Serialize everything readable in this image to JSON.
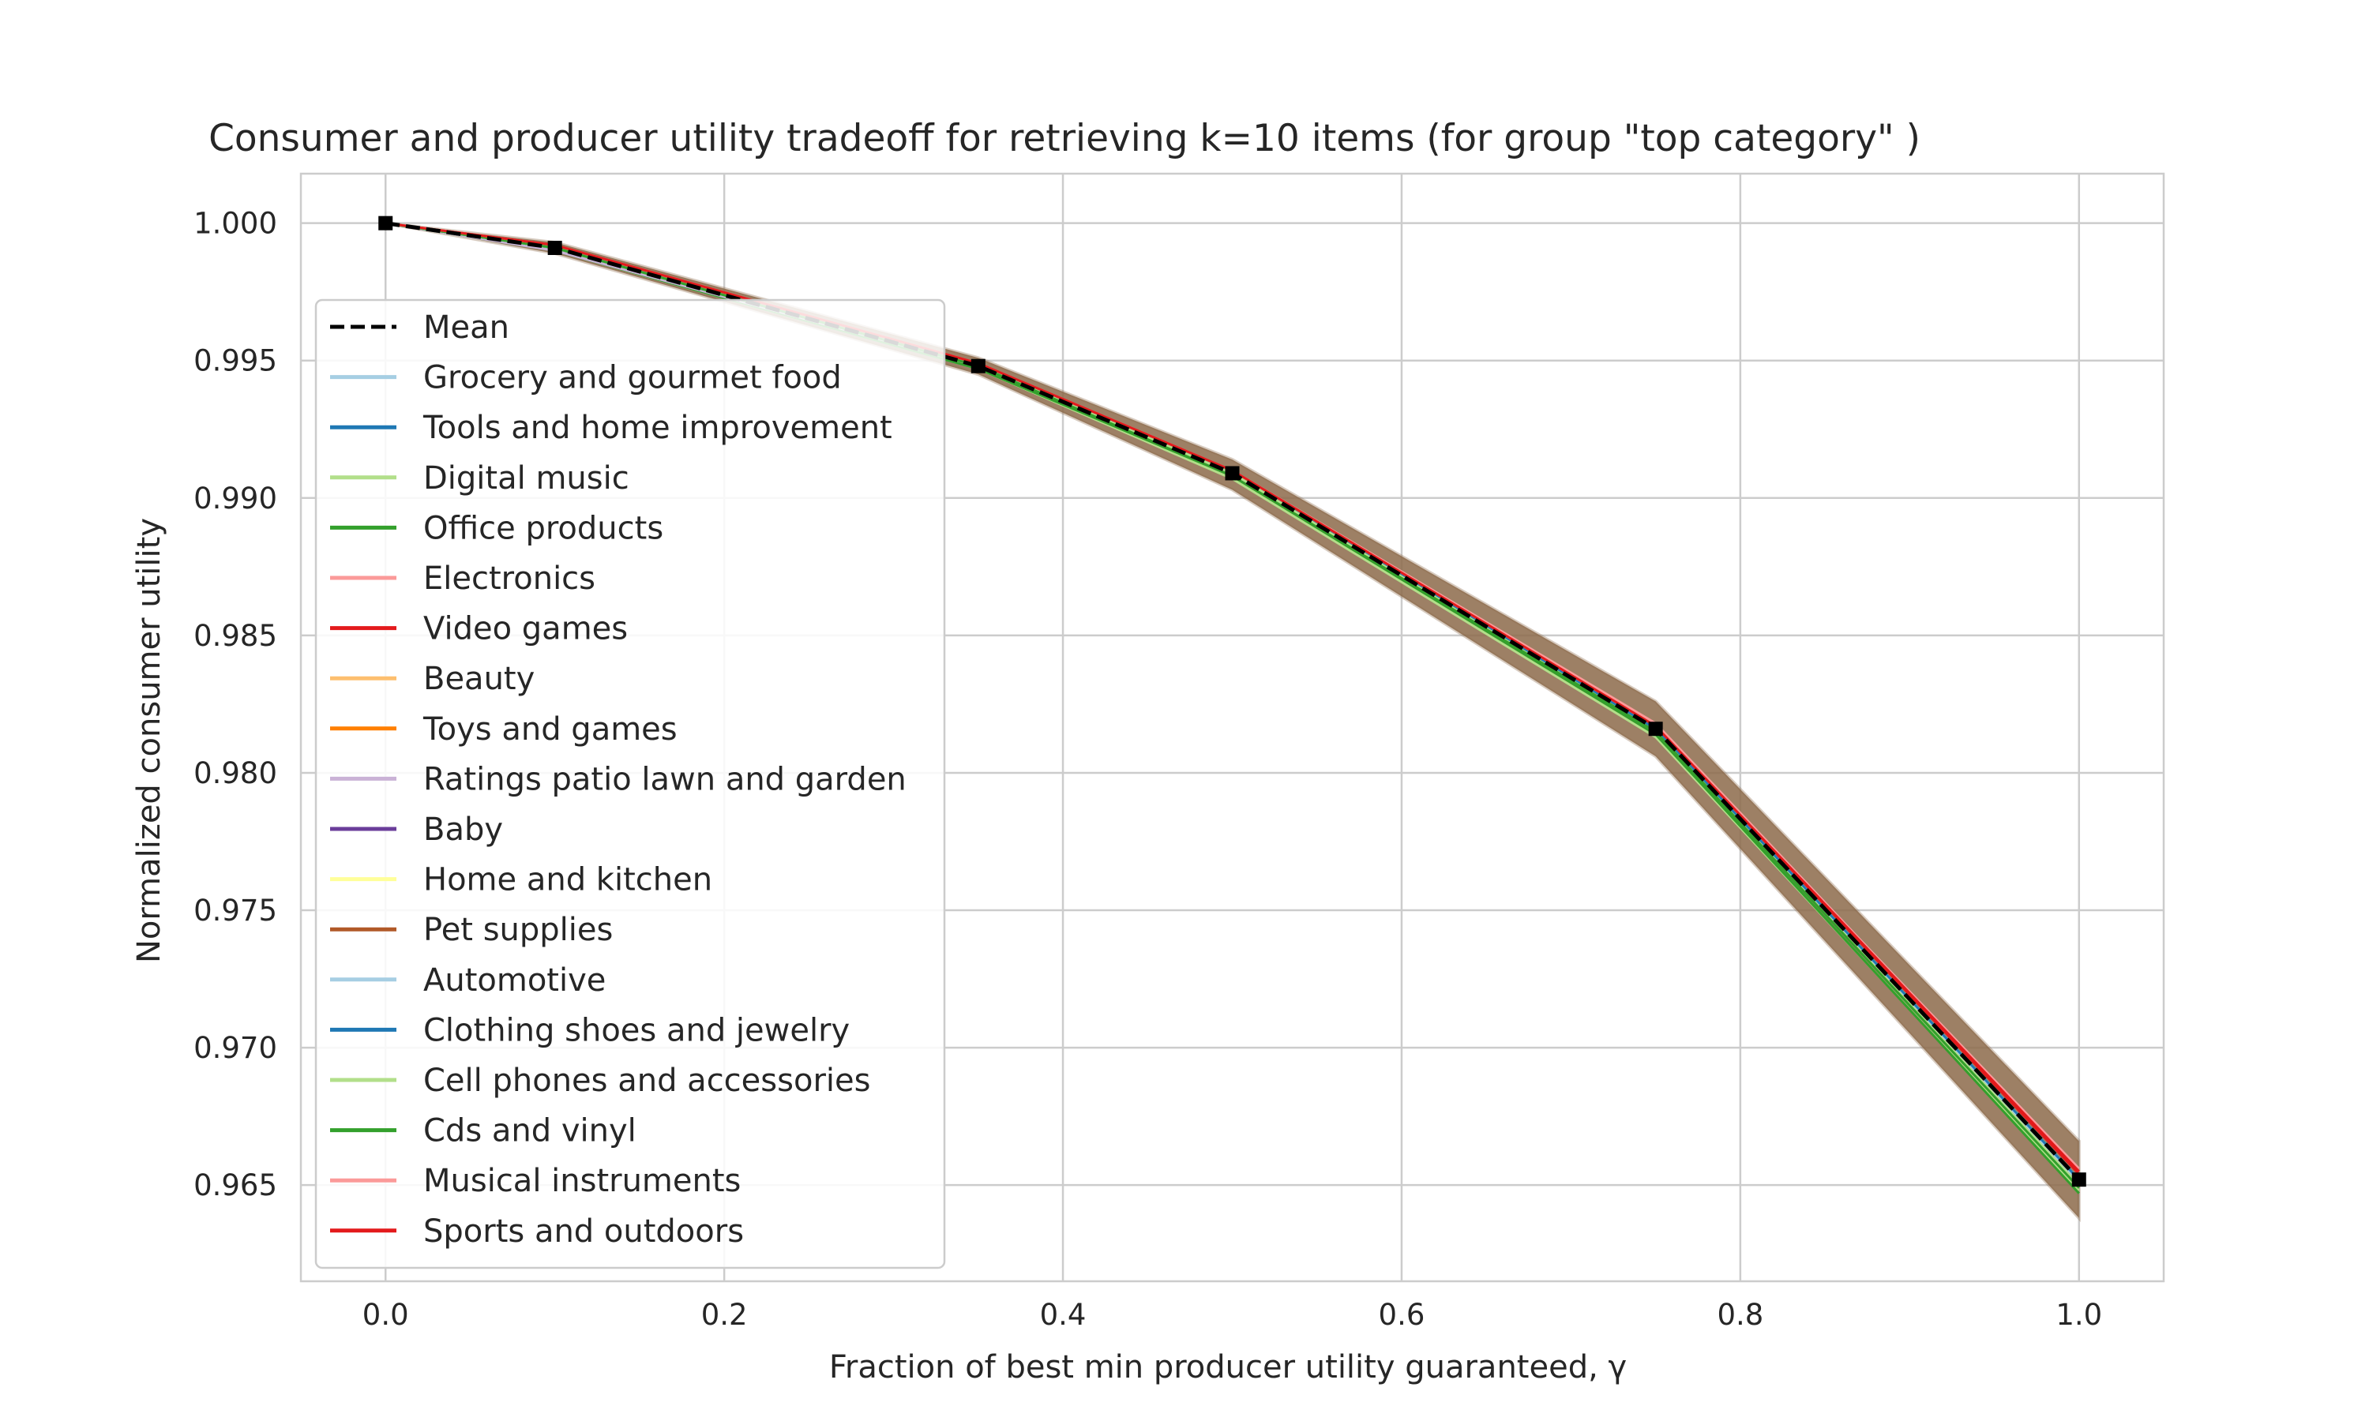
{
  "chart_data": {
    "type": "line",
    "title": "Consumer and producer utility tradeoff for retrieving k=10 items (for group \"top category\" )",
    "xlabel": "Fraction of best min producer utility guaranteed, γ",
    "ylabel": "Normalized consumer utility",
    "xlim": [
      -0.05,
      1.05
    ],
    "ylim": [
      0.9615,
      1.0018
    ],
    "xticks": [
      "0.0",
      "0.2",
      "0.4",
      "0.6",
      "0.8",
      "1.0"
    ],
    "yticks": [
      "1.000",
      "0.995",
      "0.990",
      "0.985",
      "0.980",
      "0.975",
      "0.970",
      "0.965"
    ],
    "grid": true,
    "legend_position": "center-left",
    "x": [
      0.0,
      0.1,
      0.35,
      0.5,
      0.75,
      1.0
    ],
    "mean": {
      "name": "Mean",
      "color": "#000000",
      "style": "dashed",
      "marker": "square",
      "values": [
        1.0,
        0.9991,
        0.9948,
        0.9909,
        0.9816,
        0.9652
      ]
    },
    "band": {
      "color": "#8c6a4a",
      "lower": [
        1.0,
        0.9989,
        0.9945,
        0.9903,
        0.9806,
        0.9638
      ],
      "upper": [
        1.0,
        0.9993,
        0.9951,
        0.9914,
        0.9826,
        0.9666
      ]
    },
    "series": [
      {
        "name": "Grocery and gourmet food",
        "color": "#a6cee3",
        "values": [
          1.0,
          0.999,
          0.9947,
          0.9908,
          0.9815,
          0.965
        ]
      },
      {
        "name": "Tools and home improvement",
        "color": "#1f78b4",
        "values": [
          1.0,
          0.9991,
          0.9948,
          0.9909,
          0.9816,
          0.9651
        ]
      },
      {
        "name": "Digital music",
        "color": "#b2df8a",
        "values": [
          1.0,
          0.9991,
          0.9947,
          0.9907,
          0.9813,
          0.9648
        ]
      },
      {
        "name": "Office products",
        "color": "#33a02c",
        "values": [
          1.0,
          0.999,
          0.9947,
          0.9908,
          0.9814,
          0.9647
        ]
      },
      {
        "name": "Electronics",
        "color": "#fb9a99",
        "values": [
          1.0,
          0.9992,
          0.9949,
          0.991,
          0.9818,
          0.9655
        ]
      },
      {
        "name": "Video games",
        "color": "#e31a1c",
        "values": [
          1.0,
          0.9992,
          0.9949,
          0.991,
          0.9817,
          0.9654
        ]
      },
      {
        "name": "Beauty",
        "color": "#fdbf6f",
        "values": [
          1.0,
          0.9991,
          0.9948,
          0.9909,
          0.9816,
          0.9652
        ]
      },
      {
        "name": "Toys and games",
        "color": "#ff7f00",
        "values": [
          1.0,
          0.9991,
          0.9948,
          0.9909,
          0.9816,
          0.9652
        ]
      },
      {
        "name": "Ratings patio lawn and garden",
        "color": "#cab2d6",
        "values": [
          1.0,
          0.999,
          0.9948,
          0.9909,
          0.9817,
          0.9656
        ]
      },
      {
        "name": "Baby",
        "color": "#6a3d9a",
        "values": [
          1.0,
          0.9991,
          0.9948,
          0.9909,
          0.9816,
          0.9652
        ]
      },
      {
        "name": "Home and kitchen",
        "color": "#ffff99",
        "values": [
          1.0,
          0.9991,
          0.9948,
          0.9909,
          0.9816,
          0.9652
        ]
      },
      {
        "name": "Pet supplies",
        "color": "#b15928",
        "values": [
          1.0,
          0.9991,
          0.9948,
          0.9909,
          0.9816,
          0.9651
        ]
      },
      {
        "name": "Automotive",
        "color": "#a6cee3",
        "values": [
          1.0,
          0.9991,
          0.9948,
          0.9909,
          0.9816,
          0.9651
        ]
      },
      {
        "name": "Clothing shoes and jewelry",
        "color": "#1f78b4",
        "values": [
          1.0,
          0.9991,
          0.9948,
          0.9909,
          0.9816,
          0.9652
        ]
      },
      {
        "name": "Cell phones and accessories",
        "color": "#b2df8a",
        "values": [
          1.0,
          0.9991,
          0.9948,
          0.9909,
          0.9815,
          0.965
        ]
      },
      {
        "name": "Cds and vinyl",
        "color": "#33a02c",
        "values": [
          1.0,
          0.9991,
          0.9948,
          0.9908,
          0.9815,
          0.9649
        ]
      },
      {
        "name": "Musical instruments",
        "color": "#fb9a99",
        "values": [
          1.0,
          0.9992,
          0.9949,
          0.991,
          0.9817,
          0.9656
        ]
      },
      {
        "name": "Sports and outdoors",
        "color": "#e31a1c",
        "values": [
          1.0,
          0.9992,
          0.9949,
          0.991,
          0.9817,
          0.9655
        ]
      }
    ]
  }
}
